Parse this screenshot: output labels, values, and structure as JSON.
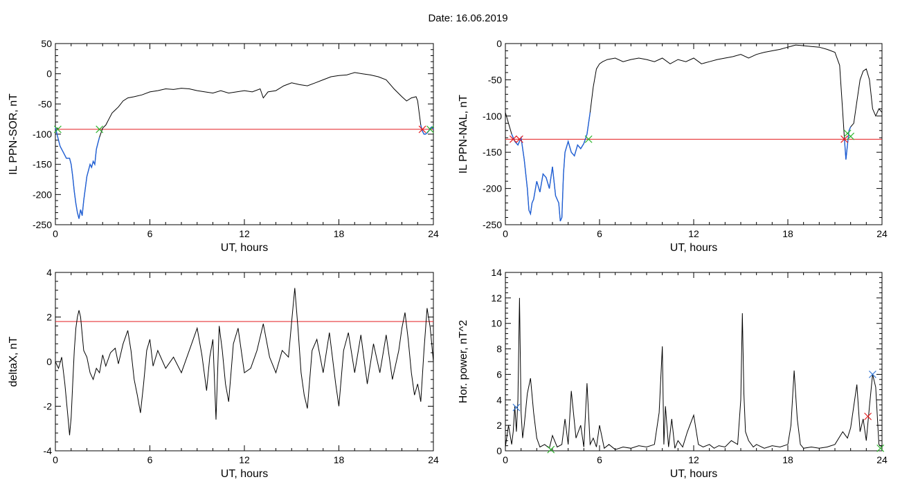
{
  "figure_title": "Date:  16.06.2019",
  "colors": {
    "trace": "#000000",
    "selection": "#1f5fd6",
    "threshold": "#e31a1c",
    "marker_start": "#2db52d",
    "marker_end": "#e31a1c",
    "marker_blue": "#3a7bd5"
  },
  "chart_data": [
    {
      "type": "line",
      "title": "",
      "xlabel": "UT, hours",
      "ylabel": "IL PPN-SOR, nT",
      "xlim": [
        0,
        24
      ],
      "ylim": [
        -250,
        50
      ],
      "xticks": [
        0,
        6,
        12,
        18,
        24
      ],
      "yticks": [
        -250,
        -200,
        -150,
        -100,
        -50,
        0,
        50
      ],
      "threshold": -92,
      "series": [
        {
          "x": [
            0,
            0.1,
            0.3,
            0.5,
            0.7,
            0.9,
            1.0,
            1.1,
            1.2,
            1.3,
            1.4,
            1.5,
            1.6,
            1.7,
            1.8,
            1.9,
            2.0,
            2.1,
            2.2,
            2.3,
            2.4,
            2.5,
            2.6,
            2.7,
            2.8,
            3.0,
            3.2,
            3.4,
            3.6,
            3.8,
            4.0,
            4.3,
            4.6,
            5.0,
            5.5,
            6.0,
            6.5,
            7.0,
            7.5,
            8.0,
            8.5,
            9.0,
            9.5,
            10.0,
            10.5,
            11.0,
            11.5,
            12.0,
            12.5,
            13.0,
            13.2,
            13.5,
            14.0,
            14.5,
            15.0,
            15.5,
            16.0,
            16.5,
            17.0,
            17.5,
            18.0,
            18.5,
            19.0,
            19.5,
            20.0,
            20.5,
            21.0,
            21.5,
            22.0,
            22.3,
            22.6,
            22.9,
            23.0,
            23.1,
            23.2,
            23.3,
            23.4,
            23.5,
            23.6,
            23.7,
            23.8,
            23.9,
            24.0
          ],
          "y": [
            -88,
            -100,
            -120,
            -130,
            -140,
            -140,
            -150,
            -170,
            -195,
            -215,
            -230,
            -240,
            -225,
            -235,
            -210,
            -190,
            -170,
            -160,
            -150,
            -155,
            -145,
            -150,
            -125,
            -115,
            -105,
            -90,
            -85,
            -75,
            -65,
            -60,
            -55,
            -45,
            -40,
            -38,
            -35,
            -30,
            -28,
            -25,
            -26,
            -24,
            -25,
            -28,
            -30,
            -32,
            -28,
            -32,
            -30,
            -28,
            -30,
            -25,
            -40,
            -30,
            -28,
            -20,
            -15,
            -18,
            -20,
            -15,
            -10,
            -5,
            -3,
            -2,
            2,
            0,
            -2,
            -5,
            -10,
            -25,
            -38,
            -45,
            -40,
            -38,
            -45,
            -65,
            -85,
            -95,
            -100,
            -100,
            -98,
            -95,
            -90,
            -88,
            -92
          ],
          "highlight_ranges": [
            [
              0,
              2.8
            ],
            [
              23.2,
              24
            ]
          ]
        }
      ],
      "markers": [
        {
          "x": 0.15,
          "y": -92,
          "color": "marker_start"
        },
        {
          "x": 2.8,
          "y": -92,
          "color": "marker_start"
        },
        {
          "x": 23.3,
          "y": -92,
          "color": "marker_end"
        },
        {
          "x": 23.8,
          "y": -92,
          "color": "marker_start"
        }
      ]
    },
    {
      "type": "line",
      "title": "",
      "xlabel": "UT, hours",
      "ylabel": "IL PPN-NAL, nT",
      "xlim": [
        0,
        24
      ],
      "ylim": [
        -250,
        0
      ],
      "xticks": [
        0,
        6,
        12,
        18,
        24
      ],
      "yticks": [
        -250,
        -200,
        -150,
        -100,
        -50,
        0
      ],
      "threshold": -132,
      "series": [
        {
          "x": [
            0,
            0.2,
            0.4,
            0.6,
            0.8,
            1.0,
            1.2,
            1.4,
            1.5,
            1.6,
            1.7,
            1.8,
            2.0,
            2.2,
            2.4,
            2.6,
            2.8,
            3.0,
            3.2,
            3.4,
            3.5,
            3.6,
            3.7,
            3.8,
            4.0,
            4.2,
            4.4,
            4.6,
            4.8,
            5.0,
            5.2,
            5.4,
            5.6,
            5.8,
            6.0,
            6.2,
            6.5,
            7.0,
            7.5,
            8.0,
            8.5,
            9.0,
            9.5,
            10.0,
            10.5,
            11.0,
            11.5,
            12.0,
            12.5,
            13.0,
            13.5,
            14.0,
            14.5,
            15.0,
            15.5,
            16.0,
            16.5,
            17.0,
            17.5,
            18.0,
            18.5,
            19.0,
            19.5,
            20.0,
            20.5,
            21.0,
            21.3,
            21.5,
            21.6,
            21.7,
            21.8,
            21.9,
            22.0,
            22.2,
            22.4,
            22.6,
            22.8,
            23.0,
            23.2,
            23.4,
            23.6,
            23.8,
            24.0
          ],
          "y": [
            -95,
            -110,
            -125,
            -135,
            -140,
            -130,
            -160,
            -200,
            -230,
            -235,
            -220,
            -215,
            -190,
            -205,
            -180,
            -185,
            -200,
            -170,
            -210,
            -220,
            -245,
            -240,
            -180,
            -150,
            -135,
            -150,
            -155,
            -140,
            -145,
            -138,
            -125,
            -95,
            -60,
            -35,
            -28,
            -25,
            -22,
            -20,
            -25,
            -22,
            -20,
            -22,
            -25,
            -20,
            -28,
            -22,
            -25,
            -20,
            -28,
            -25,
            -22,
            -20,
            -18,
            -15,
            -20,
            -15,
            -12,
            -10,
            -8,
            -5,
            -2,
            -3,
            -4,
            -5,
            -8,
            -12,
            -30,
            -95,
            -130,
            -160,
            -140,
            -120,
            -115,
            -110,
            -80,
            -50,
            -38,
            -35,
            -50,
            -90,
            -100,
            -90,
            -95
          ],
          "highlight_ranges": [
            [
              0.4,
              5.5
            ],
            [
              21.6,
              22.0
            ]
          ]
        }
      ],
      "markers": [
        {
          "x": 0.5,
          "y": -132,
          "color": "marker_end"
        },
        {
          "x": 0.9,
          "y": -132,
          "color": "marker_end"
        },
        {
          "x": 5.3,
          "y": -132,
          "color": "marker_start"
        },
        {
          "x": 21.6,
          "y": -132,
          "color": "marker_end"
        },
        {
          "x": 21.8,
          "y": -124,
          "color": "marker_start"
        },
        {
          "x": 22.0,
          "y": -128,
          "color": "marker_start"
        }
      ]
    },
    {
      "type": "line",
      "title": "",
      "xlabel": "UT, hours",
      "ylabel": "deltaX, nT",
      "xlim": [
        0,
        24
      ],
      "ylim": [
        -4,
        4
      ],
      "xticks": [
        0,
        6,
        12,
        18,
        24
      ],
      "yticks": [
        -4,
        -2,
        0,
        2,
        4
      ],
      "threshold": 1.8,
      "series": [
        {
          "x": [
            0,
            0.2,
            0.4,
            0.6,
            0.8,
            0.9,
            1.0,
            1.1,
            1.2,
            1.3,
            1.4,
            1.5,
            1.6,
            1.8,
            2.0,
            2.2,
            2.4,
            2.6,
            2.8,
            3.0,
            3.2,
            3.5,
            3.8,
            4.0,
            4.3,
            4.6,
            4.8,
            5.0,
            5.2,
            5.4,
            5.6,
            5.8,
            6.0,
            6.2,
            6.5,
            7.0,
            7.5,
            8.0,
            8.5,
            9.0,
            9.3,
            9.6,
            9.8,
            10.0,
            10.2,
            10.4,
            10.6,
            10.8,
            11.0,
            11.3,
            11.6,
            12.0,
            12.4,
            12.8,
            13.2,
            13.6,
            14.0,
            14.4,
            14.8,
            15.0,
            15.2,
            15.4,
            15.6,
            15.8,
            16.0,
            16.3,
            16.6,
            17.0,
            17.4,
            17.8,
            18.0,
            18.3,
            18.6,
            19.0,
            19.4,
            19.8,
            20.2,
            20.6,
            21.0,
            21.4,
            21.8,
            22.0,
            22.2,
            22.4,
            22.6,
            22.8,
            23.0,
            23.2,
            23.4,
            23.6,
            23.8,
            24.0
          ],
          "y": [
            0,
            -0.3,
            0.2,
            -1.0,
            -2.5,
            -3.3,
            -2.5,
            -1.0,
            0.5,
            1.5,
            2.0,
            2.3,
            2.0,
            0.5,
            0.2,
            -0.5,
            -0.8,
            -0.3,
            -0.5,
            0.3,
            -0.2,
            0.4,
            0.6,
            -0.1,
            0.8,
            1.4,
            0.5,
            -0.8,
            -1.5,
            -2.3,
            -1.0,
            0.5,
            1.0,
            -0.2,
            0.5,
            -0.3,
            0.2,
            -0.5,
            0.5,
            1.5,
            0.3,
            -1.3,
            0.2,
            1.0,
            -2.6,
            1.6,
            0.5,
            -1.0,
            -1.8,
            0.8,
            1.5,
            -0.5,
            -0.3,
            0.5,
            1.7,
            0.2,
            -0.5,
            0.5,
            0.2,
            1.8,
            3.3,
            1.5,
            -0.5,
            -1.5,
            -2.1,
            0.5,
            1.0,
            -0.5,
            1.3,
            -1.0,
            -2.0,
            0.5,
            1.3,
            -0.5,
            1.2,
            -1.0,
            0.8,
            -0.5,
            1.2,
            -0.8,
            0.5,
            1.5,
            2.2,
            1.0,
            -0.5,
            -1.5,
            -1.0,
            -1.8,
            0.5,
            2.4,
            1.5,
            0.0
          ]
        }
      ]
    },
    {
      "type": "line",
      "title": "",
      "xlabel": "UT, hours",
      "ylabel": "Hor. power, nT^2",
      "xlim": [
        0,
        24
      ],
      "ylim": [
        0,
        14
      ],
      "xticks": [
        0,
        6,
        12,
        18,
        24
      ],
      "yticks": [
        0,
        2,
        4,
        6,
        8,
        10,
        12,
        14
      ],
      "series": [
        {
          "x": [
            0,
            0.2,
            0.4,
            0.5,
            0.6,
            0.7,
            0.8,
            0.9,
            1.0,
            1.1,
            1.2,
            1.4,
            1.6,
            1.8,
            2.0,
            2.2,
            2.5,
            2.8,
            3.0,
            3.3,
            3.6,
            3.8,
            4.0,
            4.2,
            4.5,
            4.8,
            5.0,
            5.2,
            5.4,
            5.6,
            5.8,
            6.0,
            6.3,
            6.6,
            7.0,
            7.5,
            8.0,
            8.5,
            9.0,
            9.5,
            9.8,
            10.0,
            10.1,
            10.2,
            10.4,
            10.6,
            10.8,
            11.0,
            11.3,
            11.6,
            12.0,
            12.3,
            12.6,
            13.0,
            13.3,
            13.6,
            14.0,
            14.4,
            14.8,
            15.0,
            15.1,
            15.2,
            15.3,
            15.5,
            15.8,
            16.0,
            16.5,
            17.0,
            17.5,
            18.0,
            18.2,
            18.4,
            18.6,
            18.8,
            19.0,
            19.5,
            20.0,
            20.5,
            21.0,
            21.5,
            21.8,
            22.0,
            22.2,
            22.4,
            22.6,
            22.8,
            23.0,
            23.2,
            23.4,
            23.6,
            23.8,
            24.0
          ],
          "y": [
            0.3,
            2.0,
            0.5,
            1.5,
            3.5,
            1.5,
            4.0,
            12.0,
            3.0,
            1.0,
            2.0,
            4.5,
            5.7,
            3.0,
            1.0,
            0.3,
            0.5,
            0.2,
            1.2,
            0.3,
            0.5,
            2.5,
            0.5,
            4.7,
            1.0,
            2.0,
            0.3,
            5.3,
            0.5,
            1.0,
            0.3,
            2.0,
            0.2,
            0.5,
            0.1,
            0.3,
            0.2,
            0.4,
            0.3,
            0.5,
            3.0,
            8.2,
            0.5,
            3.5,
            0.3,
            2.5,
            0.2,
            0.8,
            0.3,
            1.5,
            2.8,
            0.5,
            0.3,
            0.5,
            0.2,
            0.4,
            0.3,
            0.8,
            0.5,
            4.0,
            10.8,
            4.5,
            1.5,
            0.8,
            0.3,
            0.5,
            0.2,
            0.4,
            0.3,
            0.5,
            2.0,
            6.3,
            2.5,
            0.5,
            0.2,
            0.3,
            0.2,
            0.3,
            0.5,
            1.5,
            1.0,
            1.8,
            3.5,
            5.2,
            1.5,
            2.5,
            0.8,
            3.5,
            6.0,
            5.0,
            0.5,
            0.3
          ]
        }
      ],
      "markers": [
        {
          "x": 0.7,
          "y": 3.4,
          "color": "marker_blue"
        },
        {
          "x": 2.9,
          "y": 0.1,
          "color": "marker_start"
        },
        {
          "x": 23.1,
          "y": 2.7,
          "color": "marker_end"
        },
        {
          "x": 23.4,
          "y": 6.0,
          "color": "marker_blue"
        },
        {
          "x": 23.9,
          "y": 0.2,
          "color": "marker_start"
        }
      ]
    }
  ]
}
